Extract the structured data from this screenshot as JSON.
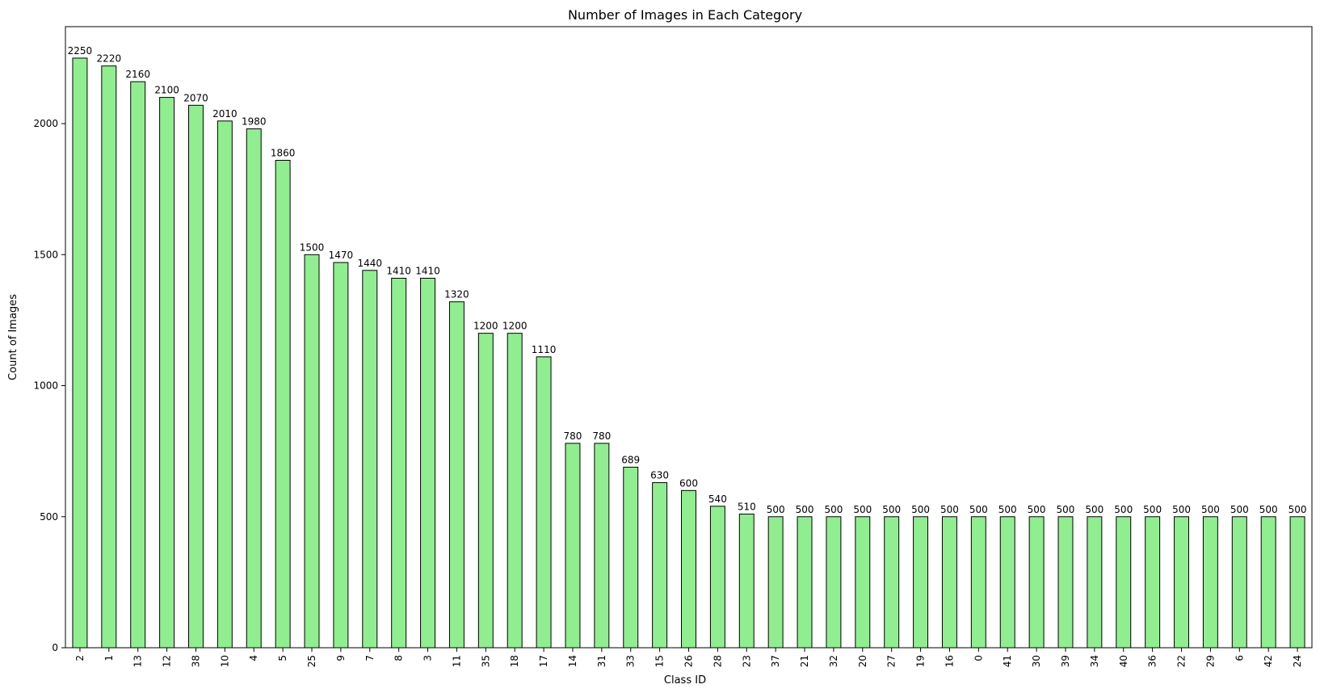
{
  "chart_data": {
    "type": "bar",
    "title": "Number of Images in Each Category",
    "xlabel": "Class ID",
    "ylabel": "Count of Images",
    "ylim": [
      0,
      2370
    ],
    "yticks": [
      0,
      500,
      1000,
      1500,
      2000
    ],
    "grid": false,
    "legend": "none",
    "bar_color": "#90ee90",
    "bar_edge_color": "#000000",
    "categories": [
      "2",
      "1",
      "13",
      "12",
      "38",
      "10",
      "4",
      "5",
      "25",
      "9",
      "7",
      "8",
      "3",
      "11",
      "35",
      "18",
      "17",
      "14",
      "31",
      "33",
      "15",
      "26",
      "28",
      "23",
      "37",
      "21",
      "32",
      "20",
      "27",
      "19",
      "16",
      "0",
      "41",
      "30",
      "39",
      "34",
      "40",
      "36",
      "22",
      "29",
      "6",
      "42",
      "24"
    ],
    "values": [
      2250,
      2220,
      2160,
      2100,
      2070,
      2010,
      1980,
      1860,
      1500,
      1470,
      1440,
      1410,
      1410,
      1320,
      1200,
      1200,
      1110,
      780,
      780,
      689,
      630,
      600,
      540,
      510,
      500,
      500,
      500,
      500,
      500,
      500,
      500,
      500,
      500,
      500,
      500,
      500,
      500,
      500,
      500,
      500,
      500,
      500,
      500
    ]
  }
}
